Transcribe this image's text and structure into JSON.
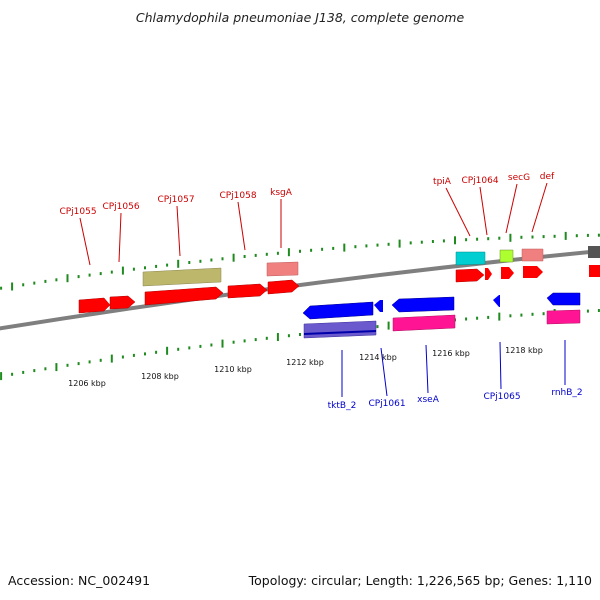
{
  "title": "Chlamydophila pneumoniae J138, complete genome",
  "footer": {
    "accession": "Accession: NC_002491",
    "summary": "Topology: circular; Length: 1,226,565 bp; Genes: 1,110"
  },
  "colors": {
    "backbone": "#7f7f7f",
    "tick": "#1f8a1f",
    "label_forward": "#cc0000",
    "label_reverse": "#0000cc",
    "cds_forward": "#ff0000",
    "cds_reverse": "#0000ff",
    "trna_rna": "#bdb76b",
    "gene_pink": "#f08080",
    "gene_cyan": "#00ced1",
    "gene_lime": "#adff2f",
    "gene_magenta": "#ff1493",
    "gene_slate": "#6a5acd",
    "gene_grey": "#555555"
  },
  "ticks": [
    {
      "label": "1206 kbp"
    },
    {
      "label": "1208 kbp"
    },
    {
      "label": "1210 kbp"
    },
    {
      "label": "1212 kbp"
    },
    {
      "label": "1214 kbp"
    },
    {
      "label": "1216 kbp"
    },
    {
      "label": "1218 kbp"
    }
  ],
  "gene_labels": {
    "forward": [
      "CPj1055",
      "CPj1056",
      "CPj1057",
      "CPj1058",
      "ksgA",
      "tpiA",
      "CPj1064",
      "secG",
      "def"
    ],
    "reverse": [
      "tktB_2",
      "CPj1061",
      "xseA",
      "CPj1065",
      "rnhB_2"
    ]
  }
}
